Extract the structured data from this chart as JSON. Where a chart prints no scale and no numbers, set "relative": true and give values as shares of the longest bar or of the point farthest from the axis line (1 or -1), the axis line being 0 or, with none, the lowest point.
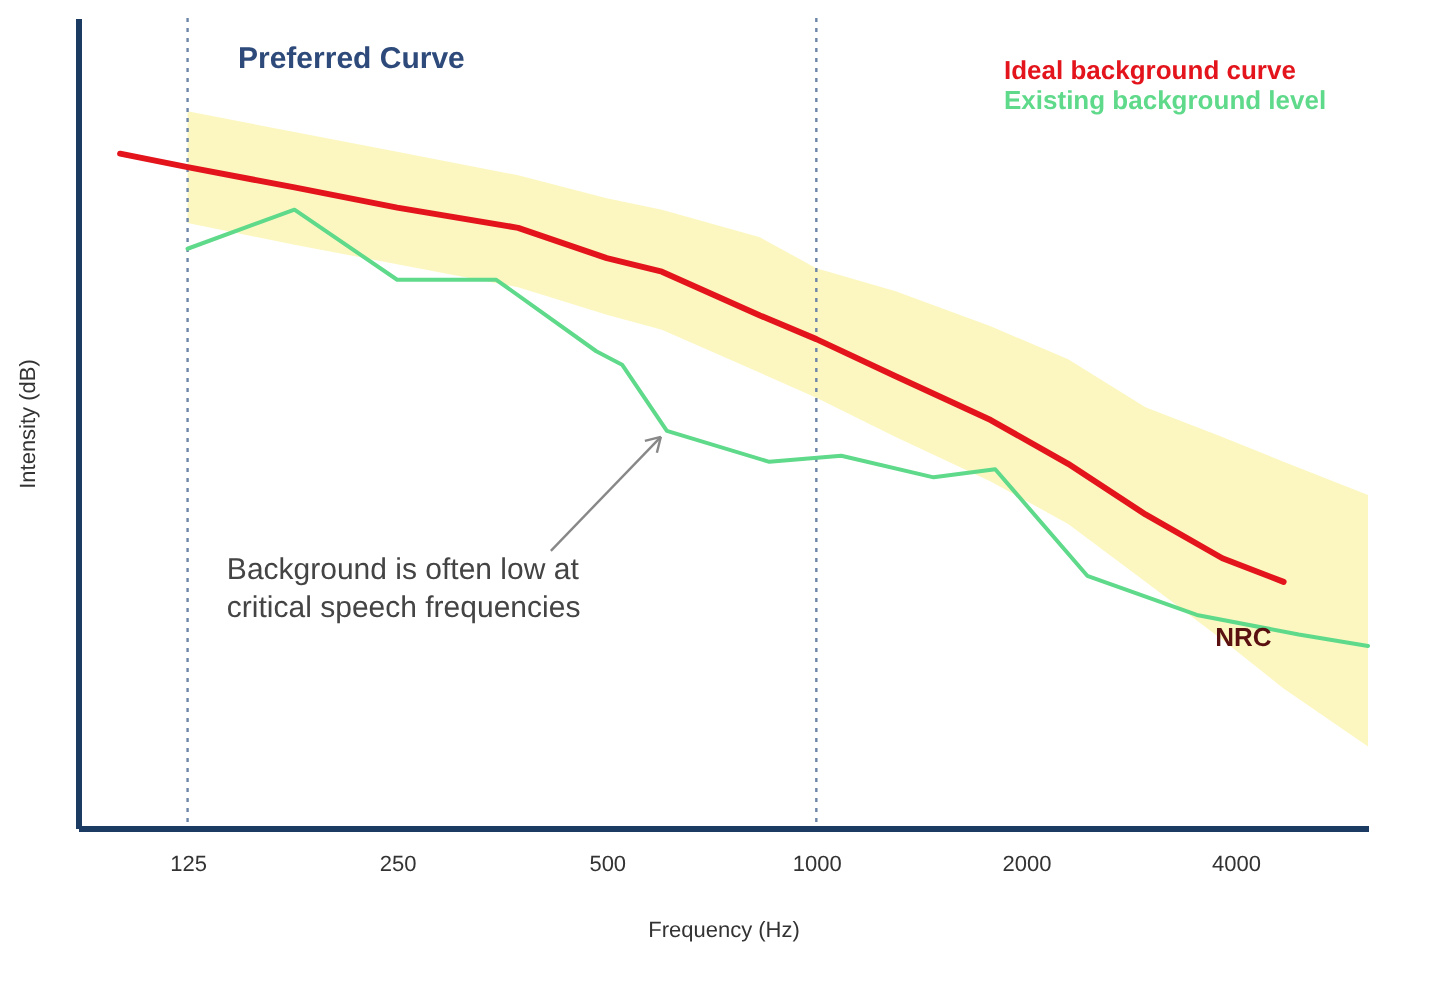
{
  "chart_data": {
    "type": "line",
    "xlabel": "Frequency (Hz)",
    "ylabel": "Intensity (dB)",
    "relative": true,
    "log": "x",
    "tick_labels": "x",
    "legend": "top right",
    "xlim": [
      87,
      6200
    ],
    "xticks": [
      125,
      250,
      500,
      1000,
      2000,
      4000
    ],
    "series": [
      {
        "name": "Ideal background curve",
        "color": "#e3141b",
        "x": [
          100,
          125,
          178,
          250,
          373,
          500,
          600,
          830,
          1000,
          1300,
          1780,
          2300,
          2970,
          3830,
          4690,
          6200
        ],
        "values": [
          1.0,
          0.98,
          0.95,
          0.92,
          0.89,
          0.845,
          0.825,
          0.76,
          0.725,
          0.67,
          0.605,
          0.54,
          0.465,
          0.4,
          0.365,
          null
        ],
        "upper": [
          null,
          1.063,
          1.032,
          1.003,
          0.968,
          0.934,
          0.917,
          0.876,
          0.83,
          0.796,
          0.744,
          0.695,
          0.624,
          0.58,
          0.543,
          0.494
        ],
        "lower": [
          null,
          0.897,
          0.865,
          0.836,
          0.802,
          0.761,
          0.739,
          0.675,
          0.638,
          0.58,
          0.514,
          0.451,
          0.365,
          0.279,
          0.207,
          0.121
        ]
      },
      {
        "name": "Existing background level",
        "color": "#5fd98a",
        "x": [
          125,
          178,
          250,
          347,
          483,
          526,
          610,
          856,
          1086,
          1474,
          1807,
          2450,
          3520,
          4930,
          6200
        ],
        "values": [
          0.859,
          0.917,
          0.813,
          0.813,
          0.707,
          0.687,
          0.589,
          0.543,
          0.552,
          0.52,
          0.532,
          0.374,
          0.316,
          0.287,
          0.27
        ]
      }
    ],
    "ref_lines": [
      {
        "axis": "x",
        "value": 125,
        "color": "#6d86a8",
        "line_style": "dotted"
      },
      {
        "axis": "x",
        "value": 1000,
        "color": "#6d86a8",
        "line_style": "dotted"
      }
    ],
    "annotations": [
      "Preferred Curve",
      {
        "text": "Background is often low at\ncritical speech frequencies",
        "x": 610,
        "y": 0.589
      },
      {
        "text": "NRC",
        "x": 4690,
        "y": 0.365
      }
    ]
  }
}
